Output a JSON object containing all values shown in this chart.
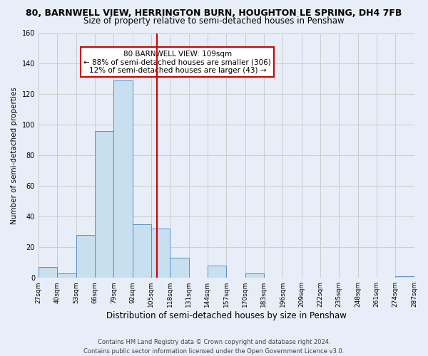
{
  "title": "80, BARNWELL VIEW, HERRINGTON BURN, HOUGHTON LE SPRING, DH4 7FB",
  "subtitle": "Size of property relative to semi-detached houses in Penshaw",
  "xlabel": "Distribution of semi-detached houses by size in Penshaw",
  "ylabel": "Number of semi-detached properties",
  "bin_edges": [
    27,
    40,
    53,
    66,
    79,
    92,
    105,
    118,
    131,
    144,
    157,
    170,
    183,
    196,
    209,
    222,
    235,
    248,
    261,
    274,
    287
  ],
  "bin_labels": [
    "27sqm",
    "40sqm",
    "53sqm",
    "66sqm",
    "79sqm",
    "92sqm",
    "105sqm",
    "118sqm",
    "131sqm",
    "144sqm",
    "157sqm",
    "170sqm",
    "183sqm",
    "196sqm",
    "209sqm",
    "222sqm",
    "235sqm",
    "248sqm",
    "261sqm",
    "274sqm",
    "287sqm"
  ],
  "bar_heights": [
    7,
    3,
    28,
    96,
    129,
    35,
    32,
    13,
    0,
    8,
    0,
    3,
    0,
    0,
    0,
    0,
    0,
    0,
    0,
    1
  ],
  "bar_color": "#c8dff0",
  "bar_edge_color": "#5590c8",
  "property_value": 109,
  "vline_color": "#cc0000",
  "vline_x": 109,
  "annotation_text": "80 BARNWELL VIEW: 109sqm\n← 88% of semi-detached houses are smaller (306)\n12% of semi-detached houses are larger (43) →",
  "annotation_box_color": "#ffffff",
  "annotation_box_edge": "#cc0000",
  "ylim": [
    0,
    160
  ],
  "yticks": [
    0,
    20,
    40,
    60,
    80,
    100,
    120,
    140,
    160
  ],
  "footer": "Contains HM Land Registry data © Crown copyright and database right 2024.\nContains public sector information licensed under the Open Government Licence v3.0.",
  "background_color": "#e8eef8",
  "plot_background": "#e8eef8",
  "grid_color": "#cccccc",
  "title_fontsize": 9,
  "subtitle_fontsize": 8.5,
  "xlabel_fontsize": 8.5,
  "ylabel_fontsize": 7.5,
  "footer_fontsize": 6.0
}
